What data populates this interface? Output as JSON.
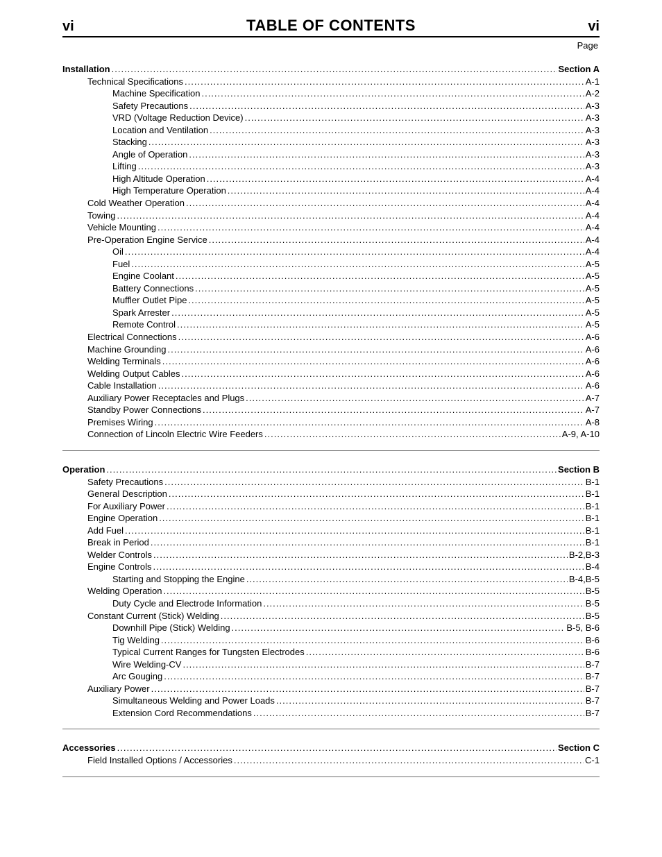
{
  "header": {
    "page_number_left": "vi",
    "title": "TABLE OF CONTENTS",
    "page_number_right": "vi",
    "page_label": "Page"
  },
  "sections": [
    {
      "head": {
        "label": "Installation",
        "page": "Section A"
      },
      "entries": [
        {
          "label": "Technical Specifications",
          "page": "A-1",
          "indent": 1
        },
        {
          "label": "Machine Specification",
          "page": "A-2",
          "indent": 2
        },
        {
          "label": "Safety Precautions",
          "page": "A-3",
          "indent": 2
        },
        {
          "label": "VRD (Voltage Reduction Device)",
          "page": "A-3",
          "indent": 2
        },
        {
          "label": "Location and Ventilation",
          "page": "A-3",
          "indent": 2
        },
        {
          "label": "Stacking",
          "page": "A-3",
          "indent": 2
        },
        {
          "label": "Angle of Operation",
          "page": "A-3",
          "indent": 2
        },
        {
          "label": "Lifting",
          "page": "A-3",
          "indent": 2
        },
        {
          "label": "High Altitude Operation",
          "page": "A-4",
          "indent": 2
        },
        {
          "label": "High Temperature Operation",
          "page": "A-4",
          "indent": 2
        },
        {
          "label": "Cold Weather Operation",
          "page": "A-4",
          "indent": 1
        },
        {
          "label": "Towing",
          "page": "A-4",
          "indent": 1
        },
        {
          "label": "Vehicle Mounting",
          "page": "A-4",
          "indent": 1
        },
        {
          "label": "Pre-Operation Engine Service",
          "page": "A-4",
          "indent": 1
        },
        {
          "label": "Oil",
          "page": "A-4",
          "indent": 2
        },
        {
          "label": "Fuel",
          "page": "A-5",
          "indent": 2
        },
        {
          "label": "Engine Coolant",
          "page": "A-5",
          "indent": 2
        },
        {
          "label": "Battery Connections",
          "page": "A-5",
          "indent": 2
        },
        {
          "label": "Muffler Outlet Pipe",
          "page": "A-5",
          "indent": 2
        },
        {
          "label": "Spark Arrester",
          "page": "A-5",
          "indent": 2
        },
        {
          "label": "Remote Control",
          "page": "A-5",
          "indent": 2
        },
        {
          "label": "Electrical Connections",
          "page": "A-6",
          "indent": 1
        },
        {
          "label": "Machine Grounding",
          "page": "A-6",
          "indent": 1
        },
        {
          "label": "Welding Terminals",
          "page": "A-6",
          "indent": 1
        },
        {
          "label": "Welding Output Cables",
          "page": "A-6",
          "indent": 1
        },
        {
          "label": "Cable Installation",
          "page": "A-6",
          "indent": 1
        },
        {
          "label": "Auxiliary Power Receptacles and Plugs",
          "page": "A-7",
          "indent": 1
        },
        {
          "label": "Standby Power Connections",
          "page": "A-7",
          "indent": 1
        },
        {
          "label": "Premises Wiring",
          "page": "A-8",
          "indent": 1
        },
        {
          "label": "Connection of Lincoln Electric Wire Feeders",
          "page": "A-9, A-10",
          "indent": 1
        }
      ]
    },
    {
      "head": {
        "label": "Operation",
        "page": "Section B"
      },
      "entries": [
        {
          "label": "Safety Precautions",
          "page": "B-1",
          "indent": 1
        },
        {
          "label": "General Description",
          "page": "B-1",
          "indent": 1
        },
        {
          "label": "For Auxiliary Power",
          "page": "B-1",
          "indent": 1
        },
        {
          "label": "Engine Operation",
          "page": "B-1",
          "indent": 1
        },
        {
          "label": "Add Fuel",
          "page": "B-1",
          "indent": 1
        },
        {
          "label": "Break in Period",
          "page": "B-1",
          "indent": 1
        },
        {
          "label": "Welder Controls",
          "page": "B-2,B-3",
          "indent": 1
        },
        {
          "label": "Engine Controls",
          "page": "B-4",
          "indent": 1
        },
        {
          "label": "Starting and Stopping the Engine",
          "page": "B-4,B-5",
          "indent": 2
        },
        {
          "label": "Welding Operation",
          "page": "B-5",
          "indent": 1
        },
        {
          "label": "Duty Cycle and Electrode Information",
          "page": "B-5",
          "indent": 2
        },
        {
          "label": "Constant Current (Stick) Welding",
          "page": "B-5",
          "indent": 1
        },
        {
          "label": "Downhill Pipe (Stick) Welding",
          "page": "B-5, B-6",
          "indent": 2
        },
        {
          "label": "Tig Welding",
          "page": "B-6",
          "indent": 2
        },
        {
          "label": "Typical Current Ranges for Tungsten Electrodes",
          "page": "B-6",
          "indent": 2
        },
        {
          "label": "Wire Welding-CV",
          "page": "B-7",
          "indent": 2
        },
        {
          "label": "Arc Gouging",
          "page": "B-7",
          "indent": 2
        },
        {
          "label": "Auxiliary Power",
          "page": "B-7",
          "indent": 1
        },
        {
          "label": "Simultaneous Welding and Power Loads",
          "page": "B-7",
          "indent": 2
        },
        {
          "label": "Extension Cord Recommendations",
          "page": "B-7",
          "indent": 2
        }
      ]
    },
    {
      "head": {
        "label": "Accessories",
        "page": "Section C"
      },
      "entries": [
        {
          "label": "Field Installed Options / Accessories",
          "page": "C-1",
          "indent": 1
        }
      ]
    }
  ]
}
